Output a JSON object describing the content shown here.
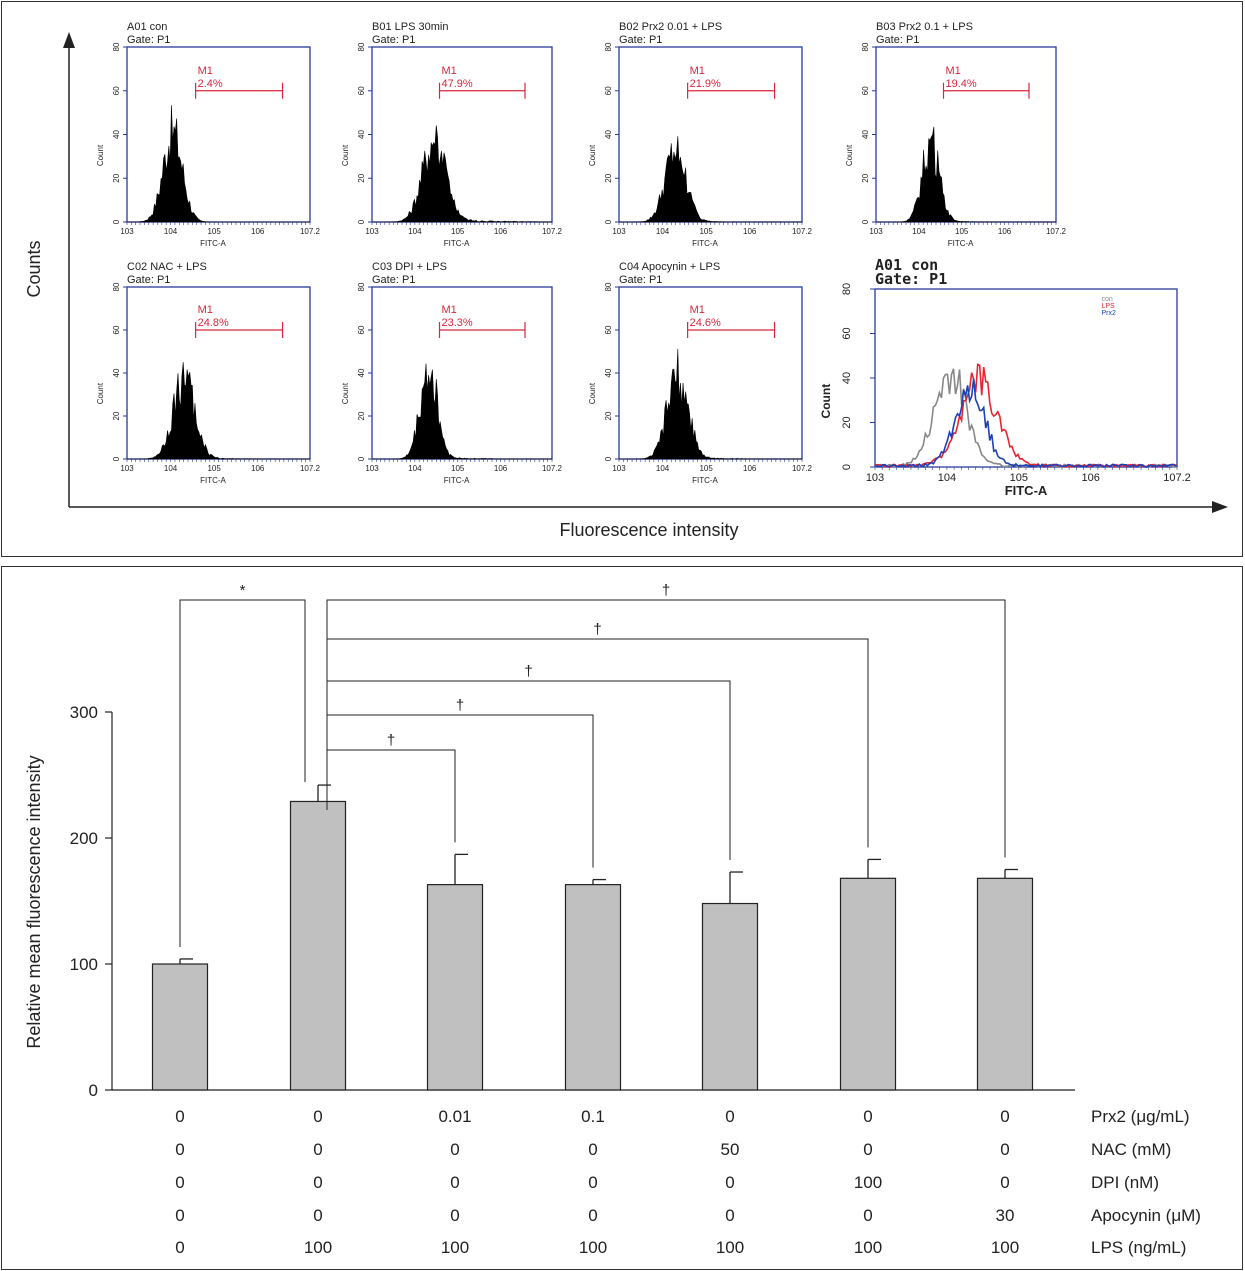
{
  "panel_a": {
    "y_axis_label": "Counts",
    "x_axis_label": "Fluorescence intensity",
    "histograms": [
      {
        "title": "A01 con",
        "gate": "Gate: P1",
        "marker": "M1",
        "percent": "2.4%",
        "xlabel": "FITC-A",
        "ylabel": "Count",
        "center": 4.05,
        "spread": 0.22,
        "peak": 45,
        "tail": 0.0
      },
      {
        "title": "B01 LPS 30min",
        "gate": "Gate: P1",
        "marker": "M1",
        "percent": "47.9%",
        "xlabel": "FITC-A",
        "ylabel": "Count",
        "center": 4.45,
        "spread": 0.27,
        "peak": 41,
        "tail": 0.08
      },
      {
        "title": "B02 Prx2 0.01 + LPS",
        "gate": "Gate: P1",
        "marker": "M1",
        "percent": "21.9%",
        "xlabel": "FITC-A",
        "ylabel": "Count",
        "center": 4.3,
        "spread": 0.24,
        "peak": 36,
        "tail": 0.03
      },
      {
        "title": "B03 Prx2 0.1 + LPS",
        "gate": "Gate: P1",
        "marker": "M1",
        "percent": "19.4%",
        "xlabel": "FITC-A",
        "ylabel": "Count",
        "center": 4.28,
        "spread": 0.2,
        "peak": 40,
        "tail": 0.02
      },
      {
        "title": "C02 NAC + LPS",
        "gate": "Gate: P1",
        "marker": "M1",
        "percent": "24.8%",
        "xlabel": "FITC-A",
        "ylabel": "Count",
        "center": 4.3,
        "spread": 0.25,
        "peak": 40,
        "tail": 0.03
      },
      {
        "title": "C03 DPI + LPS",
        "gate": "Gate: P1",
        "marker": "M1",
        "percent": "23.3%",
        "xlabel": "FITC-A",
        "ylabel": "Count",
        "center": 4.32,
        "spread": 0.2,
        "peak": 46,
        "tail": 0.03
      },
      {
        "title": "C04 Apocynin + LPS",
        "gate": "Gate: P1",
        "marker": "M1",
        "percent": "24.6%",
        "xlabel": "FITC-A",
        "ylabel": "Count",
        "center": 4.35,
        "spread": 0.24,
        "peak": 43,
        "tail": 0.03
      }
    ],
    "x_ticks": [
      "10^3",
      "10^4",
      "10^5",
      "10^6",
      "10^7.2"
    ],
    "y_ticks": [
      "0",
      "20",
      "40",
      "60",
      "80"
    ],
    "overlay": {
      "title": "A01 con",
      "gate": "Gate: P1",
      "xlabel": "FITC-A",
      "ylabel": "Count",
      "legend": [
        {
          "label": "con",
          "color": "#888888",
          "center": 4.05,
          "spread": 0.22,
          "peak": 45
        },
        {
          "label": "LPS",
          "color": "#e8252e",
          "center": 4.45,
          "spread": 0.26,
          "peak": 41
        },
        {
          "label": "Prx2",
          "color": "#1d3fb8",
          "center": 4.32,
          "spread": 0.2,
          "peak": 40
        }
      ]
    }
  },
  "chart_data": {
    "type": "bar",
    "ylabel": "Relative mean fluorescence intensity",
    "ylim": [
      0,
      300
    ],
    "y_ticks": [
      "0",
      "100",
      "200",
      "300"
    ],
    "bar_color": "#c0c0c0",
    "values": [
      100,
      229,
      163,
      163,
      148,
      168,
      168
    ],
    "errors": [
      4,
      13,
      24,
      4,
      25,
      15,
      7
    ],
    "significance": [
      {
        "from": 0,
        "to": 1,
        "symbol": "*"
      },
      {
        "from": 1,
        "to": 2,
        "symbol": "†"
      },
      {
        "from": 1,
        "to": 3,
        "symbol": "†"
      },
      {
        "from": 1,
        "to": 4,
        "symbol": "†"
      },
      {
        "from": 1,
        "to": 5,
        "symbol": "†"
      },
      {
        "from": 1,
        "to": 6,
        "symbol": "†"
      }
    ],
    "treatments": [
      {
        "label": "Prx2 (μg/mL)",
        "values": [
          "0",
          "0",
          "0.01",
          "0.1",
          "0",
          "0",
          "0"
        ]
      },
      {
        "label": "NAC (mM)",
        "values": [
          "0",
          "0",
          "0",
          "0",
          "50",
          "0",
          "0"
        ]
      },
      {
        "label": "DPI (nM)",
        "values": [
          "0",
          "0",
          "0",
          "0",
          "0",
          "100",
          "0"
        ]
      },
      {
        "label": "Apocynin (μM)",
        "values": [
          "0",
          "0",
          "0",
          "0",
          "0",
          "0",
          "30"
        ]
      },
      {
        "label": "LPS (ng/mL)",
        "values": [
          "0",
          "100",
          "100",
          "100",
          "100",
          "100",
          "100"
        ]
      }
    ]
  }
}
